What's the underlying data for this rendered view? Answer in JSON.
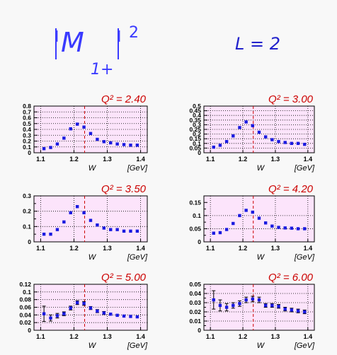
{
  "header": {
    "quantity_bar_left": "|",
    "quantity_symbol": "M",
    "quantity_subscript": "1+",
    "quantity_bar_right": "|",
    "quantity_power": "2",
    "multipole": "L = 2"
  },
  "chart_data": [
    {
      "type": "scatter",
      "title": "Q² = 2.40",
      "xlabel": "W",
      "xunit": "[GeV]",
      "xlim": [
        1.08,
        1.42
      ],
      "ylim": [
        0,
        0.8
      ],
      "xticks": [
        1.1,
        1.2,
        1.3,
        1.4
      ],
      "xtick_labels": [
        "1.1",
        "1.2",
        "1.3",
        "1.4"
      ],
      "yticks": [
        0,
        0.1,
        0.2,
        0.3,
        0.4,
        0.5,
        0.6,
        0.7,
        0.8
      ],
      "ytick_labels": [
        "0",
        "0.1",
        "0.2",
        "0.3",
        "0.4",
        "0.5",
        "0.6",
        "0.7",
        "0.8"
      ],
      "vline": 1.232,
      "grid": true,
      "x": [
        1.11,
        1.13,
        1.15,
        1.17,
        1.19,
        1.21,
        1.23,
        1.25,
        1.27,
        1.29,
        1.31,
        1.33,
        1.35,
        1.37,
        1.39
      ],
      "y": [
        0.07,
        0.09,
        0.15,
        0.25,
        0.41,
        0.49,
        0.44,
        0.33,
        0.23,
        0.19,
        0.17,
        0.15,
        0.14,
        0.13,
        0.13
      ],
      "err": [
        0.01,
        0.01,
        0.01,
        0.01,
        0.01,
        0.02,
        0.02,
        0.01,
        0.01,
        0.01,
        0.01,
        0.01,
        0.01,
        0.01,
        0.01
      ]
    },
    {
      "type": "scatter",
      "title": "Q² = 3.00",
      "xlabel": "W",
      "xunit": "[GeV]",
      "xlim": [
        1.08,
        1.42
      ],
      "ylim": [
        0,
        0.5
      ],
      "xticks": [
        1.1,
        1.2,
        1.3,
        1.4
      ],
      "xtick_labels": [
        "1.1",
        "1.2",
        "1.3",
        "1.4"
      ],
      "yticks": [
        0,
        0.05,
        0.1,
        0.15,
        0.2,
        0.25,
        0.3,
        0.35,
        0.4,
        0.45,
        0.5
      ],
      "ytick_labels": [
        "0",
        "0.05",
        "0.1",
        "0.15",
        "0.2",
        "0.25",
        "0.3",
        "0.35",
        "0.4",
        "0.45",
        "0.5"
      ],
      "vline": 1.232,
      "grid": true,
      "x": [
        1.11,
        1.13,
        1.15,
        1.17,
        1.19,
        1.21,
        1.23,
        1.25,
        1.27,
        1.29,
        1.31,
        1.33,
        1.35,
        1.37,
        1.39
      ],
      "y": [
        0.06,
        0.08,
        0.12,
        0.18,
        0.27,
        0.33,
        0.29,
        0.22,
        0.17,
        0.14,
        0.12,
        0.11,
        0.1,
        0.1,
        0.09
      ],
      "err": [
        0.01,
        0.01,
        0.01,
        0.01,
        0.01,
        0.01,
        0.01,
        0.01,
        0.01,
        0.01,
        0.01,
        0.01,
        0.01,
        0.01,
        0.01
      ]
    },
    {
      "type": "scatter",
      "title": "Q² = 3.50",
      "xlabel": "W",
      "xunit": "[GeV]",
      "xlim": [
        1.08,
        1.42
      ],
      "ylim": [
        0,
        0.3
      ],
      "xticks": [
        1.1,
        1.2,
        1.3,
        1.4
      ],
      "xtick_labels": [
        "1.1",
        "1.2",
        "1.3",
        "1.4"
      ],
      "yticks": [
        0,
        0.05,
        0.1,
        0.15,
        0.2,
        0.25,
        0.3
      ],
      "ytick_labels": [
        "0",
        "",
        "0.1",
        "",
        "0.2",
        "",
        "0.3"
      ],
      "vline": 1.232,
      "grid": true,
      "x": [
        1.11,
        1.13,
        1.15,
        1.17,
        1.19,
        1.21,
        1.23,
        1.25,
        1.27,
        1.29,
        1.31,
        1.33,
        1.35,
        1.37,
        1.39
      ],
      "y": [
        0.05,
        0.05,
        0.08,
        0.13,
        0.19,
        0.23,
        0.19,
        0.14,
        0.11,
        0.09,
        0.08,
        0.08,
        0.07,
        0.07,
        0.07
      ],
      "err": [
        0.005,
        0.005,
        0.005,
        0.005,
        0.008,
        0.008,
        0.008,
        0.005,
        0.005,
        0.005,
        0.005,
        0.005,
        0.005,
        0.005,
        0.005
      ]
    },
    {
      "type": "scatter",
      "title": "Q² = 4.20",
      "xlabel": "W",
      "xunit": "[GeV]",
      "xlim": [
        1.08,
        1.42
      ],
      "ylim": [
        0,
        0.175
      ],
      "xticks": [
        1.1,
        1.2,
        1.3,
        1.4
      ],
      "xtick_labels": [
        "1.1",
        "1.2",
        "1.3",
        "1.4"
      ],
      "yticks": [
        0,
        0.025,
        0.05,
        0.075,
        0.1,
        0.125,
        0.15
      ],
      "ytick_labels": [
        "0",
        "",
        "0.05",
        "",
        "0.1",
        "",
        "0.15"
      ],
      "vline": 1.232,
      "grid": true,
      "x": [
        1.11,
        1.13,
        1.15,
        1.17,
        1.19,
        1.21,
        1.23,
        1.25,
        1.27,
        1.29,
        1.31,
        1.33,
        1.35,
        1.37,
        1.39
      ],
      "y": [
        0.033,
        0.035,
        0.047,
        0.07,
        0.1,
        0.12,
        0.113,
        0.09,
        0.072,
        0.06,
        0.055,
        0.053,
        0.052,
        0.05,
        0.05
      ],
      "err": [
        0.003,
        0.003,
        0.003,
        0.004,
        0.004,
        0.005,
        0.005,
        0.004,
        0.003,
        0.003,
        0.003,
        0.003,
        0.003,
        0.003,
        0.003
      ]
    },
    {
      "type": "scatter",
      "title": "Q² = 5.00",
      "xlabel": "W",
      "xunit": "[GeV]",
      "xlim": [
        1.08,
        1.42
      ],
      "ylim": [
        0,
        0.12
      ],
      "xticks": [
        1.1,
        1.2,
        1.3,
        1.4
      ],
      "xtick_labels": [
        "1.1",
        "1.2",
        "1.3",
        "1.4"
      ],
      "yticks": [
        0,
        0.02,
        0.04,
        0.06,
        0.08,
        0.1,
        0.12
      ],
      "ytick_labels": [
        "0",
        "0.02",
        "0.04",
        "0.06",
        "0.08",
        "0.1",
        "0.12"
      ],
      "vline": 1.232,
      "grid": true,
      "x": [
        1.11,
        1.13,
        1.15,
        1.17,
        1.19,
        1.21,
        1.23,
        1.25,
        1.27,
        1.29,
        1.31,
        1.33,
        1.35,
        1.37,
        1.39
      ],
      "y": [
        0.043,
        0.032,
        0.038,
        0.043,
        0.058,
        0.072,
        0.07,
        0.058,
        0.05,
        0.045,
        0.042,
        0.039,
        0.037,
        0.036,
        0.035
      ],
      "err": [
        0.02,
        0.008,
        0.006,
        0.005,
        0.005,
        0.005,
        0.005,
        0.004,
        0.004,
        0.004,
        0.003,
        0.003,
        0.003,
        0.003,
        0.003
      ]
    },
    {
      "type": "scatter",
      "title": "Q² = 6.00",
      "xlabel": "W",
      "xunit": "[GeV]",
      "xlim": [
        1.08,
        1.42
      ],
      "ylim": [
        0,
        0.05
      ],
      "xticks": [
        1.1,
        1.2,
        1.3,
        1.4
      ],
      "xtick_labels": [
        "1.1",
        "1.2",
        "1.3",
        "1.4"
      ],
      "yticks": [
        0,
        0.005,
        0.01,
        0.015,
        0.02,
        0.025,
        0.03,
        0.035,
        0.04,
        0.045,
        0.05
      ],
      "ytick_labels": [
        "0",
        "",
        "0.01",
        "",
        "0.02",
        "",
        "0.03",
        "",
        "0.04",
        "",
        "0.05"
      ],
      "vline": 1.232,
      "grid": true,
      "x": [
        1.11,
        1.13,
        1.15,
        1.17,
        1.19,
        1.21,
        1.23,
        1.25,
        1.27,
        1.29,
        1.31,
        1.33,
        1.35,
        1.37,
        1.39
      ],
      "y": [
        0.033,
        0.027,
        0.025,
        0.027,
        0.029,
        0.033,
        0.034,
        0.033,
        0.027,
        0.027,
        0.026,
        0.023,
        0.022,
        0.021,
        0.02
      ],
      "err": [
        0.01,
        0.006,
        0.004,
        0.003,
        0.003,
        0.003,
        0.003,
        0.003,
        0.002,
        0.002,
        0.002,
        0.002,
        0.002,
        0.002,
        0.002
      ]
    }
  ]
}
